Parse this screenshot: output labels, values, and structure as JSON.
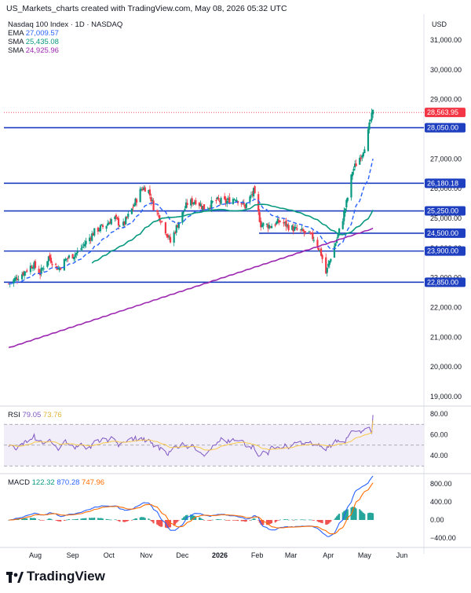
{
  "header": {
    "credit": "US_Markets_charts created with TradingView.com, May 08, 2026 05:32 UTC",
    "currency": "USD"
  },
  "main_legend": {
    "title": "Nasdaq 100 Index · 1D · NASDAQ",
    "ema_label": "EMA",
    "ema_value": "27,009.57",
    "sma1_label": "SMA",
    "sma1_value": "25,435.08",
    "sma2_label": "SMA",
    "sma2_value": "24,925.96"
  },
  "rsi_legend": {
    "label": "RSI",
    "value1": "79.05",
    "value2": "73.76"
  },
  "macd_legend": {
    "label": "MACD",
    "value1": "122.32",
    "value2": "870.28",
    "value3": "747.96"
  },
  "brand": "TradingView",
  "colors": {
    "up": "#089981",
    "down": "#f23645",
    "ema": "#2962ff",
    "sma_fast": "#089981",
    "sma_slow": "#9c27b0",
    "hline": "#1e3fbf",
    "last": "#f23645",
    "rsi": "#7e57c2",
    "rsi_ma": "#f7c948",
    "macd": "#2962ff",
    "signal": "#ff6d00"
  },
  "chart_data": [
    {
      "type": "candlestick",
      "title": "Nasdaq 100 Index · 1D · NASDAQ",
      "x_tick_labels": [
        "Aug",
        "Sep",
        "Oct",
        "Nov",
        "Dec",
        "2026",
        "Feb",
        "Mar",
        "Apr",
        "May",
        "Jun"
      ],
      "y_tick_labels": [
        "31,000.00",
        "30,000.00",
        "29,000.00",
        "28,000.00",
        "27,000.00",
        "26,000.00",
        "25,000.00",
        "24,000.00",
        "23,000.00",
        "22,000.00",
        "21,000.00",
        "20,000.00",
        "19,000.00"
      ],
      "ylim": [
        18700,
        31900
      ],
      "last_price": 28563.95,
      "horizontal_levels": [
        28050.0,
        26180.18,
        25250.0,
        24500.0,
        23900.0,
        22850.0
      ],
      "close_series": [
        {
          "date": "2025-07-10",
          "value": 22800
        },
        {
          "date": "2025-07-20",
          "value": 23100
        },
        {
          "date": "2025-07-30",
          "value": 23450
        },
        {
          "date": "2025-08-05",
          "value": 23150
        },
        {
          "date": "2025-08-12",
          "value": 23700
        },
        {
          "date": "2025-08-20",
          "value": 23300
        },
        {
          "date": "2025-08-27",
          "value": 23650
        },
        {
          "date": "2025-09-05",
          "value": 23850
        },
        {
          "date": "2025-09-12",
          "value": 24200
        },
        {
          "date": "2025-09-20",
          "value": 24600
        },
        {
          "date": "2025-09-28",
          "value": 24750
        },
        {
          "date": "2025-10-05",
          "value": 25050
        },
        {
          "date": "2025-10-12",
          "value": 24700
        },
        {
          "date": "2025-10-20",
          "value": 25300
        },
        {
          "date": "2025-10-28",
          "value": 26000
        },
        {
          "date": "2025-11-02",
          "value": 26050
        },
        {
          "date": "2025-11-07",
          "value": 25400
        },
        {
          "date": "2025-11-14",
          "value": 24900
        },
        {
          "date": "2025-11-21",
          "value": 24200
        },
        {
          "date": "2025-11-28",
          "value": 24900
        },
        {
          "date": "2025-12-05",
          "value": 25500
        },
        {
          "date": "2025-12-12",
          "value": 25600
        },
        {
          "date": "2025-12-20",
          "value": 25300
        },
        {
          "date": "2025-12-28",
          "value": 25600
        },
        {
          "date": "2026-01-06",
          "value": 25550
        },
        {
          "date": "2026-01-14",
          "value": 25700
        },
        {
          "date": "2026-01-22",
          "value": 25400
        },
        {
          "date": "2026-01-29",
          "value": 25900
        },
        {
          "date": "2026-02-04",
          "value": 24800
        },
        {
          "date": "2026-02-12",
          "value": 24750
        },
        {
          "date": "2026-02-20",
          "value": 24900
        },
        {
          "date": "2026-02-28",
          "value": 24700
        },
        {
          "date": "2026-03-06",
          "value": 24600
        },
        {
          "date": "2026-03-14",
          "value": 24500
        },
        {
          "date": "2026-03-21",
          "value": 24300
        },
        {
          "date": "2026-03-26",
          "value": 23800
        },
        {
          "date": "2026-03-30",
          "value": 23150
        },
        {
          "date": "2026-04-03",
          "value": 23700
        },
        {
          "date": "2026-04-08",
          "value": 24300
        },
        {
          "date": "2026-04-13",
          "value": 25000
        },
        {
          "date": "2026-04-17",
          "value": 25700
        },
        {
          "date": "2026-04-21",
          "value": 26600
        },
        {
          "date": "2026-04-25",
          "value": 26900
        },
        {
          "date": "2026-04-29",
          "value": 27200
        },
        {
          "date": "2026-05-03",
          "value": 27700
        },
        {
          "date": "2026-05-06",
          "value": 28300
        },
        {
          "date": "2026-05-08",
          "value": 28563.95
        }
      ],
      "series": [
        {
          "name": "EMA",
          "last": 27009.57
        },
        {
          "name": "SMA",
          "last": 25435.08
        },
        {
          "name": "SMA",
          "last": 24925.96
        }
      ]
    },
    {
      "type": "line",
      "title": "RSI",
      "y_tick_labels": [
        "80.00",
        "60.00",
        "40.00"
      ],
      "ylim": [
        20,
        90
      ],
      "band": [
        30,
        70
      ],
      "series": [
        {
          "name": "RSI",
          "last": 79.05
        },
        {
          "name": "RSI MA",
          "last": 73.76
        }
      ]
    },
    {
      "type": "line",
      "title": "MACD",
      "y_tick_labels": [
        "800.00",
        "400.00",
        "0.00",
        "−400.00"
      ],
      "ylim": [
        -500,
        1000
      ],
      "series": [
        {
          "name": "MACD",
          "last": 870.28
        },
        {
          "name": "Signal",
          "last": 747.96
        },
        {
          "name": "Histogram",
          "last": 122.32
        }
      ]
    }
  ]
}
